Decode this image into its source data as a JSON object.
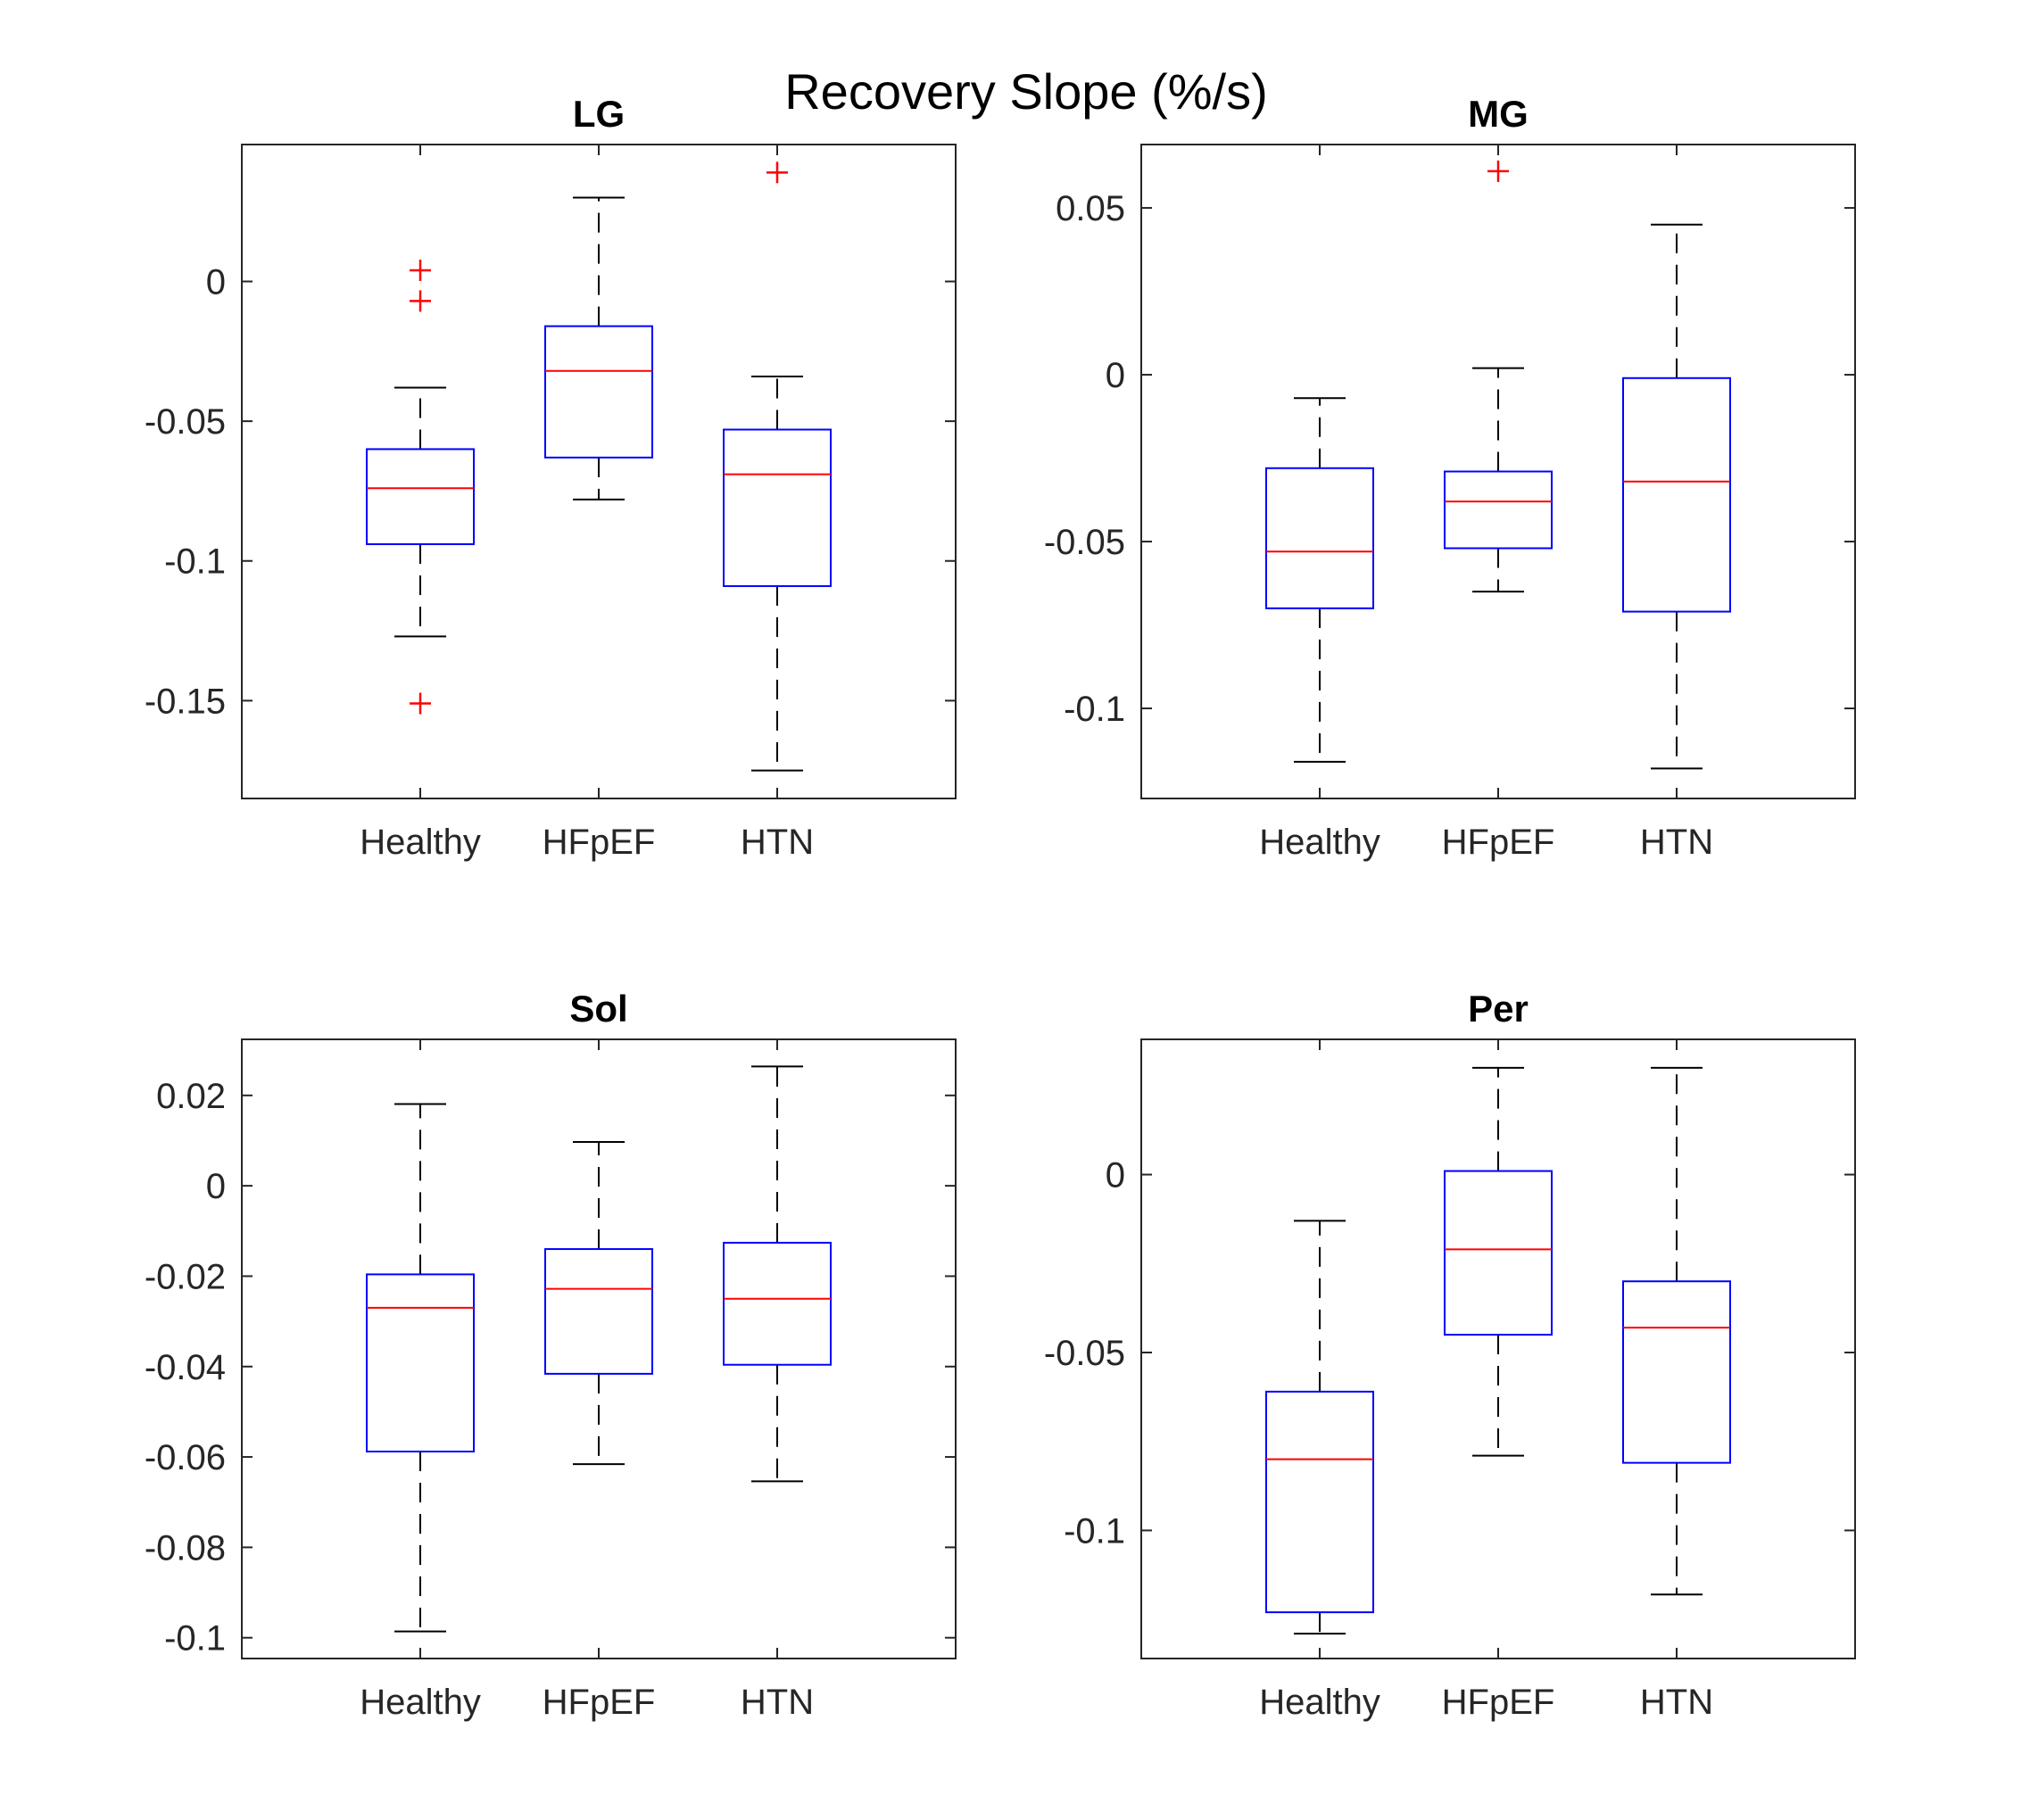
{
  "chart_data": {
    "title": "Recovery Slope (%/s)",
    "colors": {
      "box": "#0000ff",
      "median": "#ff0000",
      "whisker": "#000000",
      "outlier": "#ff0000"
    },
    "panels": [
      {
        "type": "box",
        "title": "LG",
        "categories": [
          "Healthy",
          "HFpEF",
          "HTN"
        ],
        "ylim": [
          -0.185,
          0.049
        ],
        "yticks": [
          -0.15,
          -0.1,
          -0.05,
          0
        ],
        "yticklabels": [
          "-0.15",
          "-0.1",
          "-0.05",
          "0"
        ],
        "boxes": [
          {
            "whisker_low": -0.127,
            "q1": -0.094,
            "median": -0.074,
            "q3": -0.06,
            "whisker_high": -0.038,
            "outliers": [
              0.004,
              -0.007,
              -0.151
            ]
          },
          {
            "whisker_low": -0.078,
            "q1": -0.063,
            "median": -0.032,
            "q3": -0.016,
            "whisker_high": 0.03,
            "outliers": []
          },
          {
            "whisker_low": -0.175,
            "q1": -0.109,
            "median": -0.069,
            "q3": -0.053,
            "whisker_high": -0.034,
            "outliers": [
              0.039
            ]
          }
        ]
      },
      {
        "type": "box",
        "title": "MG",
        "categories": [
          "Healthy",
          "HFpEF",
          "HTN"
        ],
        "ylim": [
          -0.127,
          0.069
        ],
        "yticks": [
          -0.1,
          -0.05,
          0,
          0.05
        ],
        "yticklabels": [
          "-0.1",
          "-0.05",
          "0",
          "0.05"
        ],
        "boxes": [
          {
            "whisker_low": -0.116,
            "q1": -0.07,
            "median": -0.053,
            "q3": -0.028,
            "whisker_high": -0.007,
            "outliers": []
          },
          {
            "whisker_low": -0.065,
            "q1": -0.052,
            "median": -0.038,
            "q3": -0.029,
            "whisker_high": 0.002,
            "outliers": [
              0.061
            ]
          },
          {
            "whisker_low": -0.118,
            "q1": -0.071,
            "median": -0.032,
            "q3": -0.001,
            "whisker_high": 0.045,
            "outliers": []
          }
        ]
      },
      {
        "type": "box",
        "title": "Sol",
        "categories": [
          "Healthy",
          "HFpEF",
          "HTN"
        ],
        "ylim": [
          -0.1046,
          0.0324
        ],
        "yticks": [
          -0.1,
          -0.08,
          -0.06,
          -0.04,
          -0.02,
          0,
          0.02
        ],
        "yticklabels": [
          "-0.1",
          "-0.08",
          "-0.06",
          "-0.04",
          "-0.02",
          "0",
          "0.02"
        ],
        "boxes": [
          {
            "whisker_low": -0.0986,
            "q1": -0.0588,
            "median": -0.027,
            "q3": -0.0196,
            "whisker_high": 0.0181,
            "outliers": []
          },
          {
            "whisker_low": -0.0616,
            "q1": -0.0416,
            "median": -0.0228,
            "q3": -0.014,
            "whisker_high": 0.0097,
            "outliers": []
          },
          {
            "whisker_low": -0.0654,
            "q1": -0.0396,
            "median": -0.025,
            "q3": -0.0126,
            "whisker_high": 0.0264,
            "outliers": []
          }
        ]
      },
      {
        "type": "box",
        "title": "Per",
        "categories": [
          "Healthy",
          "HFpEF",
          "HTN"
        ],
        "ylim": [
          -0.136,
          0.038
        ],
        "yticks": [
          -0.1,
          -0.05,
          0
        ],
        "yticklabels": [
          "-0.1",
          "-0.05",
          "0"
        ],
        "boxes": [
          {
            "whisker_low": -0.129,
            "q1": -0.123,
            "median": -0.08,
            "q3": -0.061,
            "whisker_high": -0.013,
            "outliers": []
          },
          {
            "whisker_low": -0.079,
            "q1": -0.045,
            "median": -0.021,
            "q3": 0.001,
            "whisker_high": 0.03,
            "outliers": []
          },
          {
            "whisker_low": -0.118,
            "q1": -0.081,
            "median": -0.043,
            "q3": -0.03,
            "whisker_high": 0.03,
            "outliers": []
          }
        ]
      }
    ]
  }
}
